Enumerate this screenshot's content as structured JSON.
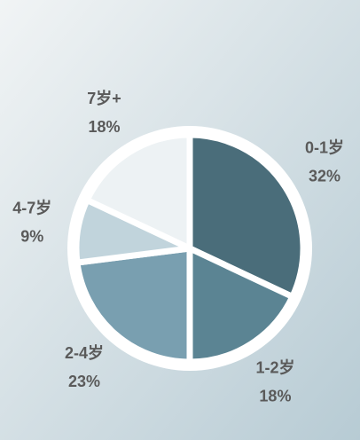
{
  "chart_data": {
    "type": "pie",
    "categories": [
      "0-1岁",
      "1-2岁",
      "2-4岁",
      "4-7岁",
      "7岁+"
    ],
    "values": [
      32,
      18,
      23,
      9,
      18
    ],
    "value_labels": [
      "32%",
      "18%",
      "23%",
      "9%",
      "18%"
    ],
    "colors": [
      "#4a6d7a",
      "#5b8493",
      "#799fb0",
      "#c1d4dc",
      "#edf2f4"
    ]
  }
}
